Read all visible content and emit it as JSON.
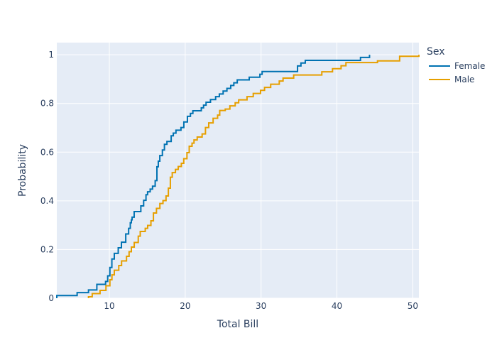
{
  "chart_data": {
    "type": "line",
    "subtype": "ecdf-step",
    "xlabel": "Total Bill",
    "ylabel": "Probability",
    "xlim": [
      3.07,
      50.81
    ],
    "ylim": [
      0,
      1.05
    ],
    "xticks": [
      10,
      20,
      30,
      40,
      50
    ],
    "yticks": [
      0,
      0.2,
      0.4,
      0.6,
      0.8,
      1
    ],
    "ytick_labels": [
      "0",
      "0.2",
      "0.4",
      "0.6",
      "0.8",
      "1"
    ],
    "grid": true,
    "plot_background": "#e5ecf6",
    "legend": {
      "title": "Sex",
      "placement": "right"
    },
    "series": [
      {
        "name": "Female",
        "color": "#0072b2",
        "x": [
          3.07,
          5.75,
          7.25,
          8.35,
          9.5,
          9.78,
          10.07,
          10.33,
          10.65,
          11.17,
          11.59,
          12.16,
          12.54,
          12.76,
          12.9,
          13.0,
          13.27,
          13.42,
          14.15,
          14.52,
          14.83,
          15.04,
          15.38,
          15.69,
          16.04,
          16.27,
          16.45,
          16.65,
          16.99,
          17.26,
          17.59,
          18.15,
          18.43,
          18.78,
          19.44,
          19.82,
          20.29,
          20.69,
          21.01,
          22.12,
          22.42,
          22.75,
          23.33,
          24.01,
          24.5,
          25.0,
          25.5,
          26.0,
          26.41,
          26.86,
          28.44,
          29.85,
          30.14,
          34.81,
          35.26,
          35.83,
          38.0,
          43.11,
          44.3
        ],
        "y": [
          0.011,
          0.023,
          0.034,
          0.057,
          0.069,
          0.092,
          0.126,
          0.161,
          0.184,
          0.207,
          0.23,
          0.264,
          0.287,
          0.31,
          0.322,
          0.333,
          0.356,
          0.356,
          0.379,
          0.402,
          0.425,
          0.437,
          0.448,
          0.46,
          0.483,
          0.54,
          0.563,
          0.586,
          0.609,
          0.632,
          0.644,
          0.667,
          0.678,
          0.69,
          0.701,
          0.724,
          0.747,
          0.759,
          0.77,
          0.782,
          0.793,
          0.805,
          0.816,
          0.828,
          0.839,
          0.851,
          0.862,
          0.874,
          0.885,
          0.897,
          0.908,
          0.92,
          0.931,
          0.954,
          0.966,
          0.977,
          0.977,
          0.989,
          1.0
        ]
      },
      {
        "name": "Male",
        "color": "#e69f00",
        "x": [
          7.25,
          7.74,
          8.77,
          9.55,
          10.07,
          10.34,
          10.65,
          11.24,
          11.61,
          12.26,
          12.6,
          12.9,
          13.28,
          13.81,
          14.07,
          14.73,
          15.05,
          15.48,
          15.81,
          16.21,
          16.66,
          17.07,
          17.47,
          17.78,
          18.04,
          18.29,
          18.71,
          19.08,
          19.49,
          19.81,
          20.23,
          20.53,
          20.9,
          21.16,
          21.58,
          22.23,
          22.67,
          23.1,
          23.68,
          24.27,
          24.55,
          25.28,
          25.89,
          26.59,
          27.05,
          28.15,
          28.97,
          29.93,
          30.46,
          31.27,
          32.4,
          32.9,
          34.3,
          38.01,
          39.42,
          40.55,
          41.19,
          45.35,
          48.27,
          50.81
        ],
        "y": [
          0.006,
          0.019,
          0.032,
          0.051,
          0.076,
          0.096,
          0.115,
          0.134,
          0.153,
          0.172,
          0.191,
          0.21,
          0.229,
          0.255,
          0.274,
          0.287,
          0.299,
          0.318,
          0.35,
          0.369,
          0.389,
          0.401,
          0.42,
          0.452,
          0.497,
          0.516,
          0.529,
          0.541,
          0.554,
          0.573,
          0.598,
          0.624,
          0.637,
          0.65,
          0.662,
          0.675,
          0.701,
          0.72,
          0.739,
          0.752,
          0.771,
          0.777,
          0.79,
          0.803,
          0.815,
          0.828,
          0.841,
          0.854,
          0.866,
          0.879,
          0.892,
          0.904,
          0.917,
          0.93,
          0.943,
          0.955,
          0.968,
          0.975,
          0.994,
          1.0
        ]
      }
    ]
  }
}
